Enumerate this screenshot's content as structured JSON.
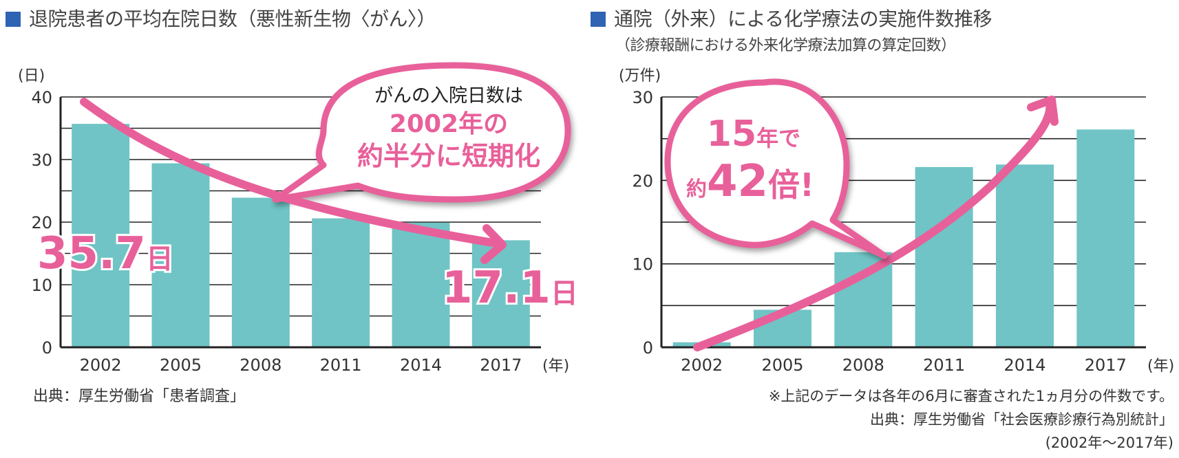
{
  "colors": {
    "title_square": "#2f63b3",
    "bar": "#70c4c5",
    "accent": "#e8609a",
    "grid": "#222222"
  },
  "chart_data": [
    {
      "type": "bar",
      "title": "退院患者の平均在院日数（悪性新生物〈がん〉）",
      "ylabel": "(日)",
      "xlabel": "(年)",
      "categories": [
        "2002",
        "2005",
        "2008",
        "2011",
        "2014",
        "2017"
      ],
      "values": [
        35.7,
        29.4,
        23.9,
        20.6,
        19.9,
        17.1
      ],
      "ylim": [
        0,
        40
      ],
      "yticks": [
        "0",
        "10",
        "20",
        "30",
        "40"
      ],
      "grid": true,
      "trend_arrow": "down",
      "annotations": {
        "start_label": "35.7",
        "start_unit": "日",
        "end_label": "17.1",
        "end_unit": "日",
        "bubble_line1": "がんの入院日数は",
        "bubble_line2": "2002年の",
        "bubble_line3": "約半分に短期化"
      },
      "source": "出典：厚生労働省「患者調査」"
    },
    {
      "type": "bar",
      "title": "通院（外来）による化学療法の実施件数推移",
      "subtitle": "（診療報酬における外来化学療法加算の算定回数）",
      "ylabel": "(万件)",
      "xlabel": "(年)",
      "categories": [
        "2002",
        "2005",
        "2008",
        "2011",
        "2014",
        "2017"
      ],
      "values": [
        0.6,
        4.5,
        11.4,
        21.6,
        21.9,
        26.1
      ],
      "ylim": [
        0,
        30
      ],
      "yticks": [
        "0",
        "10",
        "20",
        "30"
      ],
      "grid": true,
      "trend_arrow": "up",
      "annotations": {
        "bubble_line1_num": "15",
        "bubble_line1_text": "年で",
        "bubble_line2_pre": "約",
        "bubble_line2_num": "42",
        "bubble_line2_post": "倍!"
      },
      "notes": [
        "※上記のデータは各年の6月に審査された1ヵ月分の件数です。",
        "出典：厚生労働省「社会医療診療行為別統計」",
        "(2002年〜2017年)"
      ]
    }
  ]
}
